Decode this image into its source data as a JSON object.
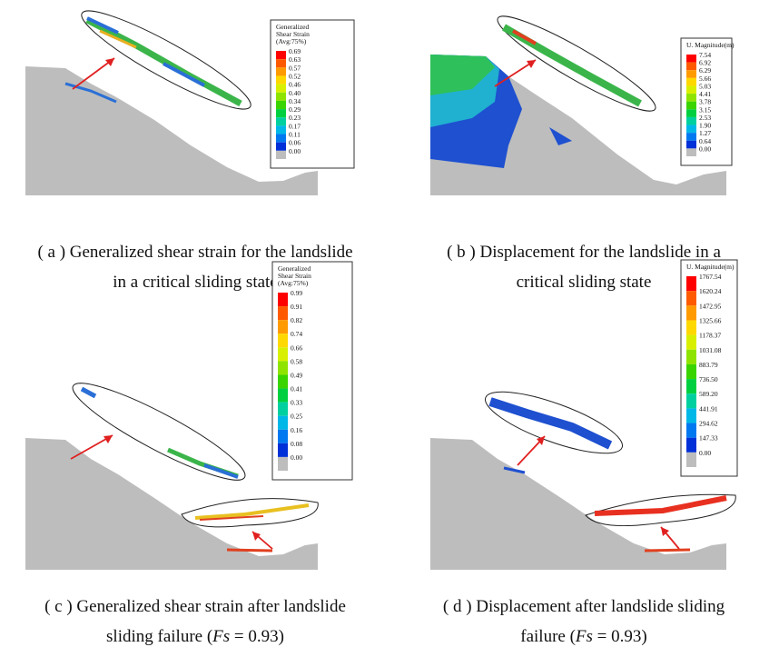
{
  "panels": [
    {
      "legend": {
        "title": [
          "Generalized",
          "Shear Strain",
          "(Avg:75%)"
        ],
        "values": [
          "0.69",
          "0.63",
          "0.57",
          "0.52",
          "0.46",
          "0.40",
          "0.34",
          "0.29",
          "0.23",
          "0.17",
          "0.11",
          "0.06",
          "0.00"
        ]
      },
      "caption": [
        [
          "( a ) Generalized shear strain for the landslide"
        ],
        [
          "in a critical sliding state"
        ]
      ]
    },
    {
      "legend": {
        "title": [
          "U. Magnitude(m)"
        ],
        "values": [
          "7.54",
          "6.92",
          "6.29",
          "5.66",
          "5.03",
          "4.41",
          "3.78",
          "3.15",
          "2.53",
          "1.90",
          "1.27",
          "0.64",
          "0.00"
        ]
      },
      "caption": [
        [
          "( b ) Displacement for the landslide in a"
        ],
        [
          "critical sliding state"
        ]
      ]
    },
    {
      "legend": {
        "title": [
          "Generalized",
          "Shear Strain",
          "(Avg:75%)"
        ],
        "values": [
          "0.99",
          "0.91",
          "0.82",
          "0.74",
          "0.66",
          "0.58",
          "0.49",
          "0.41",
          "0.33",
          "0.25",
          "0.16",
          "0.08",
          "0.00"
        ]
      },
      "caption": [
        [
          "( c ) Generalized shear strain after landslide"
        ],
        [
          "sliding failure (",
          {
            "text": "Fs",
            "italic": true
          },
          " = 0.93)"
        ]
      ]
    },
    {
      "legend": {
        "title": [
          "U. Magnitude(m)"
        ],
        "values": [
          "1767.54",
          "1620.24",
          "1472.95",
          "1325.66",
          "1178.37",
          "1031.08",
          "883.79",
          "736.50",
          "589.20",
          "441.91",
          "294.62",
          "147.33",
          "0.00"
        ]
      },
      "caption": [
        [
          "( d ) Displacement after landslide sliding"
        ],
        [
          "failure (",
          {
            "text": "Fs",
            "italic": true
          },
          " = 0.93)"
        ]
      ]
    }
  ]
}
